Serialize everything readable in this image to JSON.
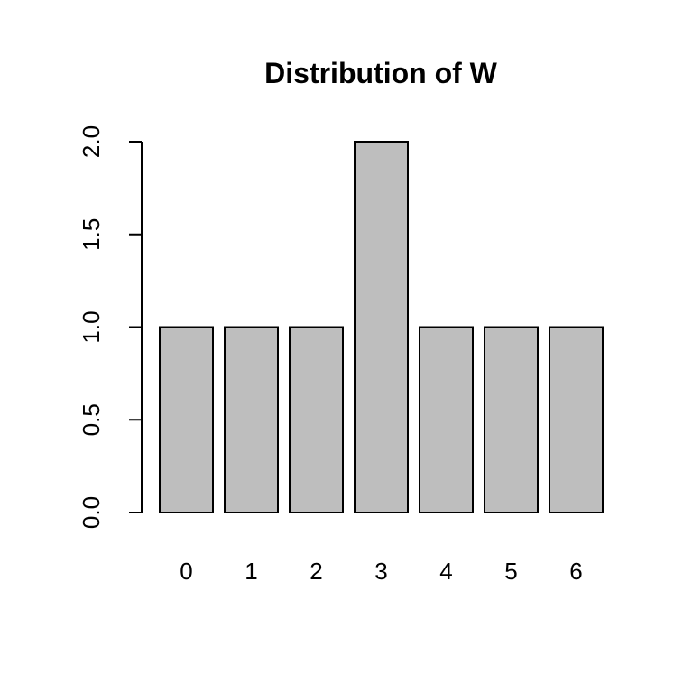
{
  "chart_data": {
    "type": "bar",
    "title": "Distribution of W",
    "xlabel": "",
    "ylabel": "",
    "categories": [
      "0",
      "1",
      "2",
      "3",
      "4",
      "5",
      "6"
    ],
    "values": [
      1,
      1,
      1,
      2,
      1,
      1,
      1
    ],
    "ylim": [
      0,
      2
    ],
    "yticks": [
      "0.0",
      "0.5",
      "1.0",
      "1.5",
      "2.0"
    ],
    "grid": false,
    "colors": {
      "bar_fill": "#bebebe",
      "bar_stroke": "#000000",
      "background": "#ffffff"
    }
  }
}
